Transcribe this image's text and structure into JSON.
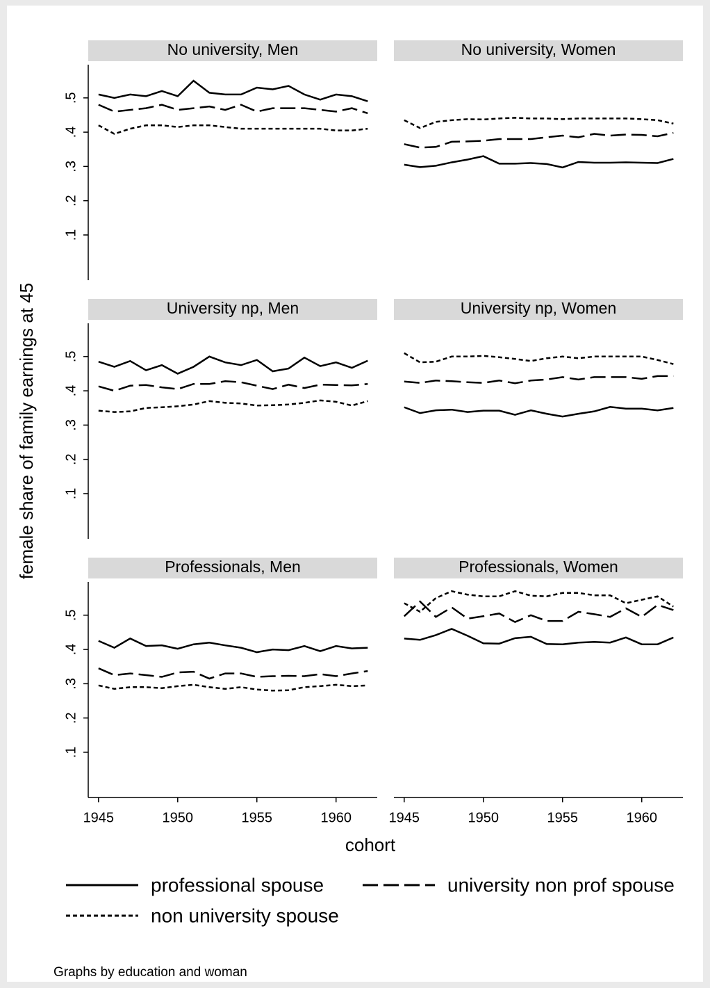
{
  "axis_labels": {
    "y": "female share of family earnings at 45",
    "x": "cohort"
  },
  "note": "Graphs by education and woman",
  "chart_data": [
    {
      "type": "line",
      "title": "No university, Men",
      "x": [
        1945,
        1946,
        1947,
        1948,
        1949,
        1950,
        1951,
        1952,
        1953,
        1954,
        1955,
        1956,
        1957,
        1958,
        1959,
        1960,
        1961,
        1962
      ],
      "xlim": [
        1944.35,
        1962.6
      ],
      "ylim": [
        -0.032,
        0.597
      ],
      "yticks": [
        {
          "value": 0.1,
          "label": ".1"
        },
        {
          "value": 0.2,
          "label": ".2"
        },
        {
          "value": 0.3,
          "label": ".3"
        },
        {
          "value": 0.4,
          "label": ".4"
        },
        {
          "value": 0.5,
          "label": ".5"
        }
      ],
      "series": [
        {
          "name": "professional spouse",
          "color": "#000000",
          "line_style": "solid",
          "values": [
            0.51,
            0.5,
            0.51,
            0.505,
            0.52,
            0.505,
            0.55,
            0.515,
            0.51,
            0.51,
            0.53,
            0.525,
            0.535,
            0.51,
            0.495,
            0.51,
            0.505,
            0.49
          ]
        },
        {
          "name": "university non prof spouse",
          "color": "#000000",
          "line_style": "dashed",
          "values": [
            0.48,
            0.46,
            0.465,
            0.47,
            0.48,
            0.465,
            0.47,
            0.475,
            0.465,
            0.48,
            0.46,
            0.47,
            0.47,
            0.47,
            0.465,
            0.46,
            0.47,
            0.455
          ]
        },
        {
          "name": "non university spouse",
          "color": "#000000",
          "line_style": "dotted",
          "values": [
            0.42,
            0.395,
            0.41,
            0.42,
            0.42,
            0.415,
            0.42,
            0.42,
            0.415,
            0.41,
            0.41,
            0.41,
            0.41,
            0.41,
            0.41,
            0.405,
            0.405,
            0.41
          ]
        }
      ]
    },
    {
      "type": "line",
      "title": "No university, Women",
      "x": [
        1945,
        1946,
        1947,
        1948,
        1949,
        1950,
        1951,
        1952,
        1953,
        1954,
        1955,
        1956,
        1957,
        1958,
        1959,
        1960,
        1961,
        1962
      ],
      "xlim": [
        1944.35,
        1962.6
      ],
      "ylim": [
        -0.032,
        0.597
      ],
      "series": [
        {
          "name": "professional spouse",
          "color": "#000000",
          "line_style": "solid",
          "values": [
            0.305,
            0.298,
            0.302,
            0.312,
            0.32,
            0.33,
            0.308,
            0.308,
            0.31,
            0.307,
            0.297,
            0.313,
            0.311,
            0.311,
            0.312,
            0.311,
            0.31,
            0.322
          ]
        },
        {
          "name": "university non prof spouse",
          "color": "#000000",
          "line_style": "dashed",
          "values": [
            0.365,
            0.355,
            0.357,
            0.372,
            0.373,
            0.375,
            0.38,
            0.38,
            0.38,
            0.385,
            0.39,
            0.385,
            0.395,
            0.39,
            0.393,
            0.392,
            0.388,
            0.398
          ]
        },
        {
          "name": "non university spouse",
          "color": "#000000",
          "line_style": "dotted",
          "values": [
            0.435,
            0.412,
            0.43,
            0.435,
            0.438,
            0.437,
            0.44,
            0.442,
            0.44,
            0.44,
            0.438,
            0.44,
            0.44,
            0.44,
            0.44,
            0.438,
            0.435,
            0.425
          ]
        }
      ]
    },
    {
      "type": "line",
      "title": "University np, Men",
      "x": [
        1945,
        1946,
        1947,
        1948,
        1949,
        1950,
        1951,
        1952,
        1953,
        1954,
        1955,
        1956,
        1957,
        1958,
        1959,
        1960,
        1961,
        1962
      ],
      "xlim": [
        1944.35,
        1962.6
      ],
      "ylim": [
        -0.032,
        0.597
      ],
      "yticks": [
        {
          "value": 0.1,
          "label": ".1"
        },
        {
          "value": 0.2,
          "label": ".2"
        },
        {
          "value": 0.3,
          "label": ".3"
        },
        {
          "value": 0.4,
          "label": ".4"
        },
        {
          "value": 0.5,
          "label": ".5"
        }
      ],
      "series": [
        {
          "name": "professional spouse",
          "color": "#000000",
          "line_style": "solid",
          "values": [
            0.485,
            0.47,
            0.487,
            0.46,
            0.475,
            0.45,
            0.47,
            0.5,
            0.483,
            0.475,
            0.49,
            0.457,
            0.465,
            0.497,
            0.472,
            0.483,
            0.467,
            0.488
          ]
        },
        {
          "name": "university non prof spouse",
          "color": "#000000",
          "line_style": "dashed",
          "values": [
            0.413,
            0.4,
            0.415,
            0.417,
            0.41,
            0.405,
            0.42,
            0.42,
            0.428,
            0.425,
            0.415,
            0.405,
            0.418,
            0.408,
            0.418,
            0.417,
            0.416,
            0.42
          ]
        },
        {
          "name": "non university spouse",
          "color": "#000000",
          "line_style": "dotted",
          "values": [
            0.342,
            0.338,
            0.34,
            0.35,
            0.352,
            0.355,
            0.36,
            0.37,
            0.365,
            0.363,
            0.357,
            0.358,
            0.36,
            0.365,
            0.372,
            0.368,
            0.357,
            0.37
          ]
        }
      ]
    },
    {
      "type": "line",
      "title": "University np, Women",
      "x": [
        1945,
        1946,
        1947,
        1948,
        1949,
        1950,
        1951,
        1952,
        1953,
        1954,
        1955,
        1956,
        1957,
        1958,
        1959,
        1960,
        1961,
        1962
      ],
      "xlim": [
        1944.35,
        1962.6
      ],
      "ylim": [
        -0.032,
        0.597
      ],
      "series": [
        {
          "name": "professional spouse",
          "color": "#000000",
          "line_style": "solid",
          "values": [
            0.352,
            0.335,
            0.343,
            0.345,
            0.338,
            0.342,
            0.342,
            0.33,
            0.343,
            0.333,
            0.325,
            0.333,
            0.34,
            0.353,
            0.348,
            0.348,
            0.343,
            0.35
          ]
        },
        {
          "name": "university non prof spouse",
          "color": "#000000",
          "line_style": "dashed",
          "values": [
            0.427,
            0.423,
            0.43,
            0.428,
            0.425,
            0.423,
            0.43,
            0.422,
            0.43,
            0.433,
            0.44,
            0.433,
            0.44,
            0.44,
            0.44,
            0.435,
            0.443,
            0.443
          ]
        },
        {
          "name": "non university spouse",
          "color": "#000000",
          "line_style": "dotted",
          "values": [
            0.51,
            0.483,
            0.485,
            0.5,
            0.5,
            0.502,
            0.498,
            0.493,
            0.487,
            0.495,
            0.5,
            0.495,
            0.5,
            0.5,
            0.5,
            0.5,
            0.49,
            0.478
          ]
        }
      ]
    },
    {
      "type": "line",
      "title": "Professionals, Men",
      "x": [
        1945,
        1946,
        1947,
        1948,
        1949,
        1950,
        1951,
        1952,
        1953,
        1954,
        1955,
        1956,
        1957,
        1958,
        1959,
        1960,
        1961,
        1962
      ],
      "xlim": [
        1944.35,
        1962.6
      ],
      "ylim": [
        -0.032,
        0.597
      ],
      "xticks": [
        1945,
        1950,
        1955,
        1960
      ],
      "yticks": [
        {
          "value": 0.1,
          "label": ".1"
        },
        {
          "value": 0.2,
          "label": ".2"
        },
        {
          "value": 0.3,
          "label": ".3"
        },
        {
          "value": 0.4,
          "label": ".4"
        },
        {
          "value": 0.5,
          "label": ".5"
        }
      ],
      "series": [
        {
          "name": "professional spouse",
          "color": "#000000",
          "line_style": "solid",
          "values": [
            0.425,
            0.405,
            0.432,
            0.41,
            0.412,
            0.402,
            0.415,
            0.42,
            0.412,
            0.405,
            0.392,
            0.4,
            0.398,
            0.41,
            0.395,
            0.41,
            0.403,
            0.405
          ]
        },
        {
          "name": "university non prof spouse",
          "color": "#000000",
          "line_style": "dashed",
          "values": [
            0.345,
            0.325,
            0.33,
            0.325,
            0.32,
            0.333,
            0.335,
            0.315,
            0.33,
            0.33,
            0.32,
            0.322,
            0.323,
            0.322,
            0.328,
            0.322,
            0.33,
            0.337
          ]
        },
        {
          "name": "non university spouse",
          "color": "#000000",
          "line_style": "dotted",
          "values": [
            0.295,
            0.285,
            0.29,
            0.29,
            0.287,
            0.293,
            0.297,
            0.29,
            0.285,
            0.29,
            0.283,
            0.28,
            0.281,
            0.29,
            0.293,
            0.297,
            0.293,
            0.295
          ]
        }
      ]
    },
    {
      "type": "line",
      "title": "Professionals, Women",
      "x": [
        1945,
        1946,
        1947,
        1948,
        1949,
        1950,
        1951,
        1952,
        1953,
        1954,
        1955,
        1956,
        1957,
        1958,
        1959,
        1960,
        1961,
        1962
      ],
      "xlim": [
        1944.35,
        1962.6
      ],
      "ylim": [
        -0.032,
        0.597
      ],
      "xticks": [
        1945,
        1950,
        1955,
        1960
      ],
      "series": [
        {
          "name": "professional spouse",
          "color": "#000000",
          "line_style": "solid",
          "values": [
            0.432,
            0.428,
            0.442,
            0.46,
            0.44,
            0.418,
            0.417,
            0.433,
            0.437,
            0.416,
            0.415,
            0.42,
            0.422,
            0.42,
            0.435,
            0.415,
            0.415,
            0.435
          ]
        },
        {
          "name": "university non prof spouse",
          "color": "#000000",
          "line_style": "dashed",
          "values": [
            0.497,
            0.54,
            0.495,
            0.523,
            0.49,
            0.497,
            0.505,
            0.48,
            0.5,
            0.483,
            0.483,
            0.51,
            0.503,
            0.495,
            0.52,
            0.495,
            0.53,
            0.515
          ]
        },
        {
          "name": "non university spouse",
          "color": "#000000",
          "line_style": "dotted",
          "values": [
            0.535,
            0.51,
            0.55,
            0.57,
            0.56,
            0.555,
            0.555,
            0.57,
            0.557,
            0.555,
            0.565,
            0.565,
            0.558,
            0.558,
            0.535,
            0.545,
            0.555,
            0.525
          ]
        }
      ]
    }
  ]
}
